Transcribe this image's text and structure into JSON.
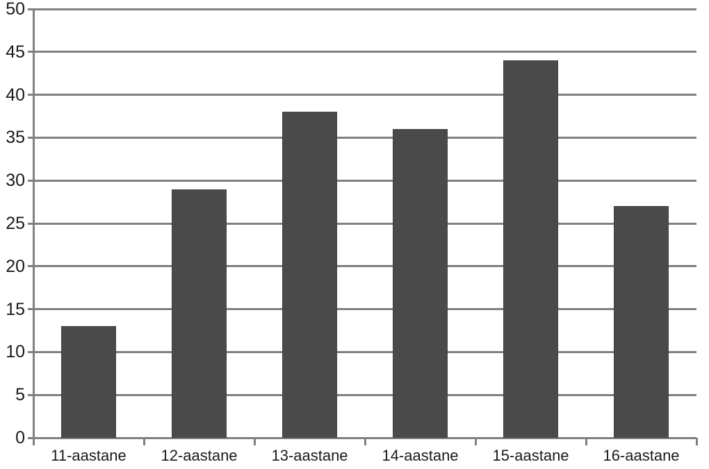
{
  "chart_data": {
    "type": "bar",
    "title": "",
    "xlabel": "",
    "ylabel": "",
    "categories": [
      "11-aastane",
      "12-aastane",
      "13-aastane",
      "14-aastane",
      "15-aastane",
      "16-aastane"
    ],
    "values": [
      13,
      29,
      38,
      36,
      44,
      27
    ],
    "ylim": [
      0,
      50
    ],
    "yticks": [
      0,
      5,
      10,
      15,
      20,
      25,
      30,
      35,
      40,
      45,
      50
    ],
    "grid": true,
    "legend_position": "none",
    "colors": {
      "bar": "#4a4a4a",
      "bar_border": "#424242",
      "gridline": "#7f7f7f",
      "axis": "#7f7f7f",
      "text": "#1a1a1a",
      "background": "#ffffff"
    }
  }
}
